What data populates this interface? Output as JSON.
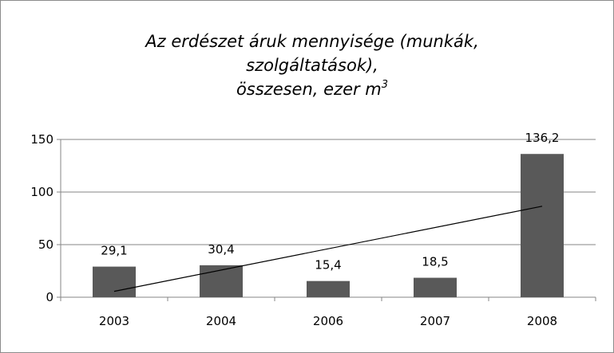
{
  "chart_data": {
    "type": "bar",
    "title_line1": "Az erdészet áruk mennyisége (munkák,",
    "title_line2": "szolgáltatások),",
    "title_line3": "összesen, ezer m",
    "title_sup": "3",
    "categories": [
      "2003",
      "2004",
      "2006",
      "2007",
      "2008"
    ],
    "values": [
      29.1,
      30.4,
      15.4,
      18.5,
      136.2
    ],
    "value_labels": [
      "29,1",
      "30,4",
      "15,4",
      "18,5",
      "136,2"
    ],
    "ylim": [
      0,
      150
    ],
    "yticks": [
      0,
      50,
      100,
      150
    ],
    "ytick_labels": [
      "0",
      "50",
      "100",
      "150"
    ],
    "grid": true,
    "trendline": {
      "type": "linear",
      "start": 5.6,
      "end": 86.5
    },
    "colors": {
      "bar": "#595959",
      "grid": "#868686",
      "trend": "#000000"
    }
  }
}
